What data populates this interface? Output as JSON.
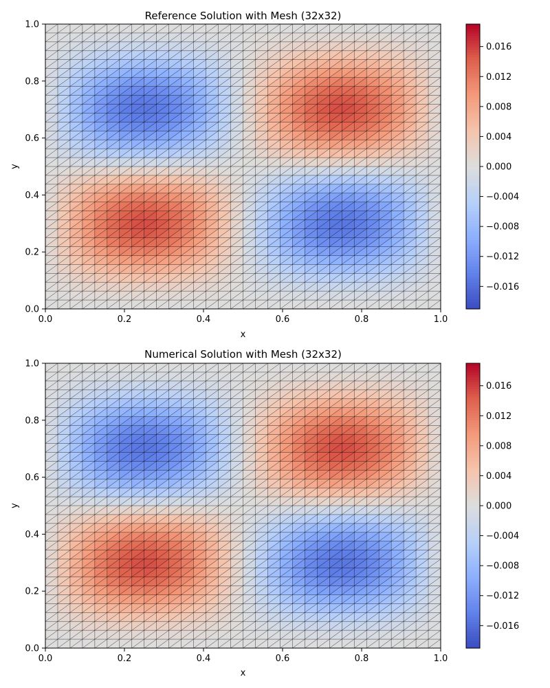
{
  "chart_data": [
    {
      "type": "heatmap",
      "title": "Reference Solution with Mesh (32x32)",
      "xlabel": "x",
      "ylabel": "y",
      "xlim": [
        0.0,
        1.0
      ],
      "ylim": [
        0.0,
        1.0
      ],
      "xticks": [
        "0.0",
        "0.2",
        "0.4",
        "0.6",
        "0.8",
        "1.0"
      ],
      "yticks": [
        "0.0",
        "0.2",
        "0.4",
        "0.6",
        "0.8",
        "1.0"
      ],
      "mesh": {
        "nx": 32,
        "ny": 32,
        "element": "triangle"
      },
      "colormap": "coolwarm",
      "color_range": [
        -0.019,
        0.019
      ],
      "colorbar_ticks": [
        "−0.016",
        "−0.012",
        "−0.008",
        "−0.004",
        "0.000",
        "0.004",
        "0.008",
        "0.012",
        "0.016"
      ],
      "colorbar_values": [
        -0.016,
        -0.012,
        -0.008,
        -0.004,
        0.0,
        0.004,
        0.008,
        0.012,
        0.016
      ],
      "field": "0.019*sin(2*pi*x)*sin(2*pi*y)*4*y*(1-y)"
    },
    {
      "type": "heatmap",
      "title": "Numerical Solution with Mesh (32x32)",
      "xlabel": "x",
      "ylabel": "y",
      "xlim": [
        0.0,
        1.0
      ],
      "ylim": [
        0.0,
        1.0
      ],
      "xticks": [
        "0.0",
        "0.2",
        "0.4",
        "0.6",
        "0.8",
        "1.0"
      ],
      "yticks": [
        "0.0",
        "0.2",
        "0.4",
        "0.6",
        "0.8",
        "1.0"
      ],
      "mesh": {
        "nx": 32,
        "ny": 32,
        "element": "triangle"
      },
      "colormap": "coolwarm",
      "color_range": [
        -0.019,
        0.019
      ],
      "colorbar_ticks": [
        "−0.016",
        "−0.012",
        "−0.008",
        "−0.004",
        "0.000",
        "0.004",
        "0.008",
        "0.012",
        "0.016"
      ],
      "colorbar_values": [
        -0.016,
        -0.012,
        -0.008,
        -0.004,
        0.0,
        0.004,
        0.008,
        0.012,
        0.016
      ],
      "field": "0.019*sin(2*pi*x)*sin(2*pi*y)*4*y*(1-y)"
    }
  ]
}
